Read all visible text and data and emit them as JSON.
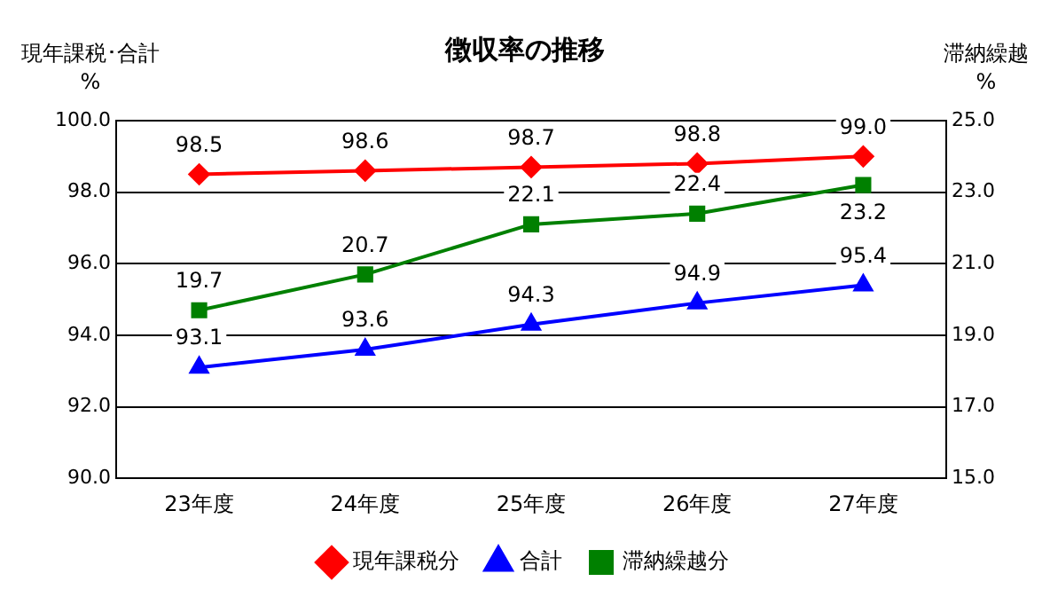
{
  "chart_data": {
    "type": "line",
    "title": "徴収率の推移",
    "ylabel": "現年課税･合計\n%",
    "y2label": "滞納繰越\n%",
    "categories": [
      "23年度",
      "24年度",
      "25年度",
      "26年度",
      "27年度"
    ],
    "series": [
      {
        "name": "現年課税分",
        "color": "#ff0000",
        "marker": "diamond",
        "values": [
          98.5,
          98.6,
          98.7,
          98.8,
          99.0
        ],
        "value_labels": [
          "98.5",
          "98.6",
          "98.7",
          "98.8",
          "99.0"
        ]
      },
      {
        "name": "合計",
        "color": "#0000ff",
        "marker": "triangle",
        "values": [
          93.1,
          93.6,
          94.3,
          94.9,
          95.4
        ],
        "value_labels": [
          "93.1",
          "93.6",
          "94.3",
          "94.9",
          "95.4"
        ]
      },
      {
        "name": "滞納繰越分",
        "color": "#008000",
        "marker": "square",
        "axis": "y2",
        "values": [
          19.7,
          20.7,
          22.1,
          22.4,
          23.2
        ],
        "value_labels": [
          "19.7",
          "20.7",
          "22.1",
          "22.4",
          "23.2"
        ]
      }
    ],
    "ylim": [
      90,
      100
    ],
    "yticks": [
      {
        "value": 90,
        "label": "90.0"
      },
      {
        "value": 92,
        "label": "92.0"
      },
      {
        "value": 94,
        "label": "94.0"
      },
      {
        "value": 96,
        "label": "96.0"
      },
      {
        "value": 98,
        "label": "98.0"
      },
      {
        "value": 100,
        "label": "100.0"
      }
    ],
    "y2lim": [
      15,
      25
    ],
    "y2ticks": [
      {
        "value": 15,
        "label": "15.0"
      },
      {
        "value": 17,
        "label": "17.0"
      },
      {
        "value": 19,
        "label": "19.0"
      },
      {
        "value": 21,
        "label": "21.0"
      },
      {
        "value": 23,
        "label": "23.0"
      },
      {
        "value": 25,
        "label": "25.0"
      }
    ],
    "grid": "y",
    "legend": "bottom",
    "line_style": "solid"
  }
}
